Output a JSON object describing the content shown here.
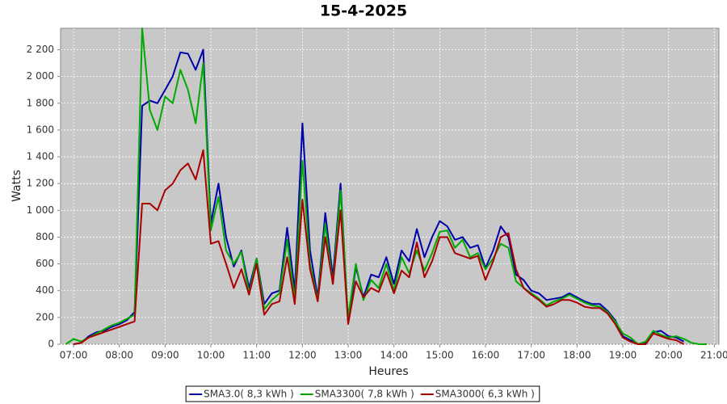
{
  "chart_data": {
    "type": "line",
    "title": "15-4-2025",
    "x_label": "Heures",
    "y_label": "Watts",
    "x": [
      "06:50",
      "07:00",
      "07:10",
      "07:20",
      "07:30",
      "07:40",
      "07:50",
      "08:00",
      "08:10",
      "08:20",
      "08:30",
      "08:40",
      "08:50",
      "09:00",
      "09:10",
      "09:20",
      "09:30",
      "09:40",
      "09:50",
      "10:00",
      "10:10",
      "10:20",
      "10:30",
      "10:40",
      "10:50",
      "11:00",
      "11:10",
      "11:20",
      "11:30",
      "11:40",
      "11:50",
      "12:00",
      "12:10",
      "12:20",
      "12:30",
      "12:40",
      "12:50",
      "13:00",
      "13:10",
      "13:20",
      "13:30",
      "13:40",
      "13:50",
      "14:00",
      "14:10",
      "14:20",
      "14:30",
      "14:40",
      "14:50",
      "15:00",
      "15:10",
      "15:20",
      "15:30",
      "15:40",
      "15:50",
      "16:00",
      "16:10",
      "16:20",
      "16:30",
      "16:40",
      "16:50",
      "17:00",
      "17:10",
      "17:20",
      "17:30",
      "17:40",
      "17:50",
      "18:00",
      "18:10",
      "18:20",
      "18:30",
      "18:40",
      "18:50",
      "19:00",
      "19:10",
      "19:20",
      "19:30",
      "19:40",
      "19:50",
      "20:00",
      "20:10",
      "20:20",
      "20:30",
      "20:40",
      "20:50"
    ],
    "series": [
      {
        "name": "SMA3.0( 8,3 kWh )",
        "color": "#0000aa",
        "values": [
          null,
          0,
          10,
          60,
          90,
          100,
          130,
          150,
          180,
          240,
          1780,
          1820,
          1800,
          1900,
          2000,
          2180,
          2170,
          2050,
          2200,
          900,
          1200,
          800,
          580,
          700,
          420,
          640,
          300,
          380,
          400,
          870,
          400,
          1650,
          700,
          350,
          980,
          500,
          1200,
          160,
          580,
          350,
          520,
          500,
          650,
          450,
          700,
          620,
          860,
          650,
          800,
          920,
          880,
          780,
          800,
          720,
          740,
          570,
          700,
          880,
          800,
          520,
          480,
          400,
          380,
          330,
          340,
          350,
          380,
          350,
          320,
          300,
          300,
          250,
          180,
          60,
          30,
          0,
          10,
          90,
          100,
          60,
          50,
          20,
          null,
          null,
          null
        ]
      },
      {
        "name": "SMA3300( 7,8 kWh )",
        "color": "#00aa00",
        "values": [
          0,
          40,
          20,
          50,
          80,
          110,
          140,
          160,
          190,
          220,
          2360,
          1750,
          1600,
          1850,
          1800,
          2050,
          1900,
          1650,
          2100,
          850,
          1100,
          700,
          600,
          690,
          380,
          640,
          260,
          330,
          380,
          780,
          330,
          1370,
          600,
          330,
          900,
          450,
          1150,
          200,
          600,
          330,
          480,
          420,
          600,
          400,
          650,
          530,
          700,
          550,
          680,
          840,
          850,
          720,
          780,
          650,
          680,
          560,
          640,
          750,
          720,
          470,
          420,
          380,
          340,
          290,
          320,
          340,
          370,
          340,
          310,
          290,
          280,
          240,
          170,
          80,
          50,
          0,
          20,
          100,
          70,
          50,
          60,
          40,
          10,
          0,
          0
        ]
      },
      {
        "name": "SMA3000( 6,3 kWh )",
        "color": "#aa0000",
        "values": [
          null,
          0,
          10,
          50,
          70,
          90,
          110,
          130,
          150,
          170,
          1050,
          1050,
          1000,
          1150,
          1200,
          1300,
          1350,
          1230,
          1450,
          750,
          770,
          600,
          420,
          560,
          370,
          600,
          220,
          300,
          320,
          650,
          300,
          1080,
          560,
          320,
          800,
          450,
          1000,
          150,
          470,
          350,
          420,
          390,
          540,
          380,
          550,
          500,
          760,
          500,
          620,
          800,
          800,
          680,
          660,
          640,
          660,
          480,
          620,
          800,
          830,
          560,
          420,
          370,
          330,
          280,
          300,
          330,
          330,
          310,
          280,
          270,
          270,
          230,
          150,
          50,
          20,
          0,
          0,
          80,
          60,
          40,
          30,
          0,
          null,
          null,
          null
        ]
      }
    ],
    "xlim": [
      "06:43",
      "21:06"
    ],
    "xticks": [
      "07:00",
      "08:00",
      "09:00",
      "10:00",
      "11:00",
      "12:00",
      "13:00",
      "14:00",
      "15:00",
      "16:00",
      "17:00",
      "18:00",
      "19:00",
      "20:00",
      "21:00"
    ],
    "ylim": [
      0,
      2360
    ],
    "yticks": [
      0,
      200,
      400,
      600,
      800,
      {
        "value": 1000,
        "label": "1 000"
      },
      {
        "value": 1200,
        "label": "1 200"
      },
      {
        "value": 1400,
        "label": "1 400"
      },
      {
        "value": 1600,
        "label": "1 600"
      },
      {
        "value": 1800,
        "label": "1 800"
      },
      {
        "value": 2000,
        "label": "2 000"
      },
      {
        "value": 2200,
        "label": "2 200"
      }
    ],
    "grid": true,
    "plot_background": "#c8c8c8",
    "legend": "bottom"
  }
}
